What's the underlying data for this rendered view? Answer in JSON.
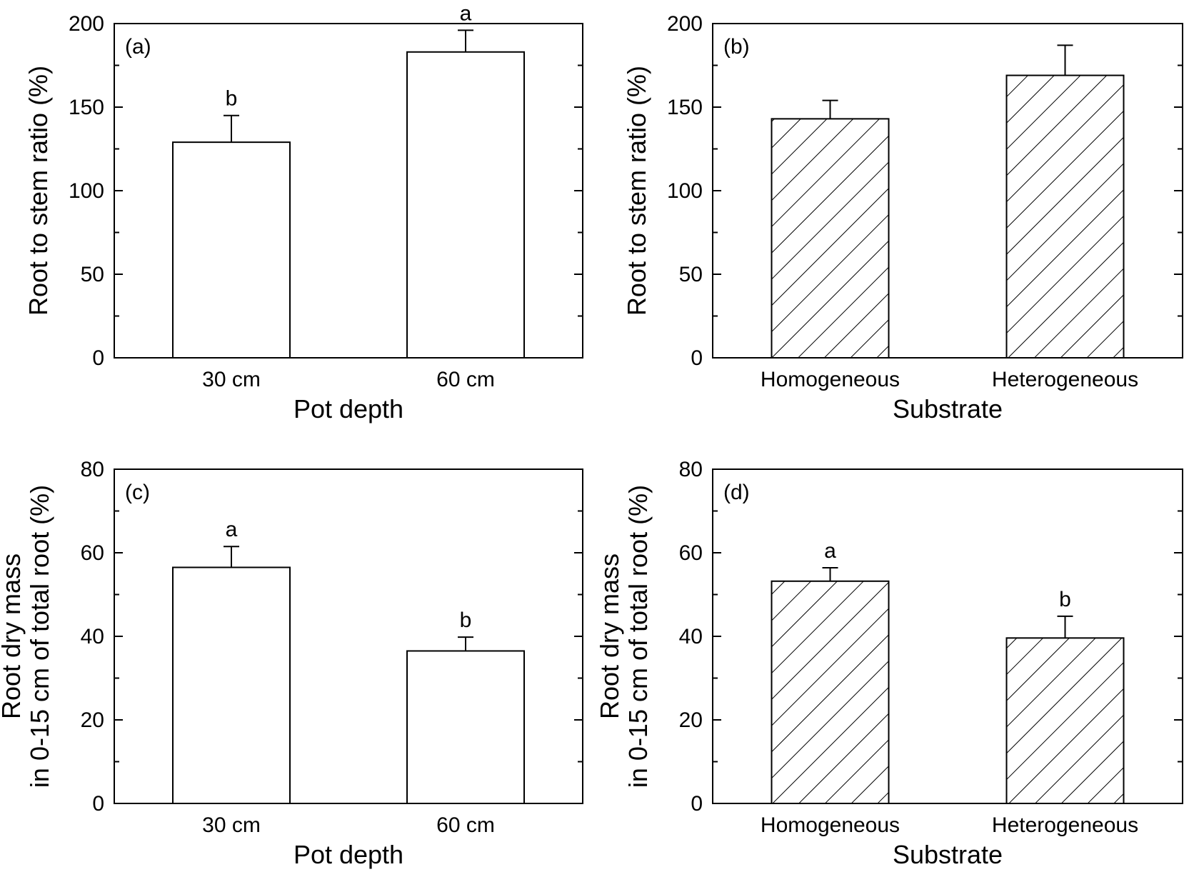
{
  "chart_data": [
    {
      "panel": "(a)",
      "type": "bar",
      "pattern": "open",
      "categories": [
        "30 cm",
        "60 cm"
      ],
      "values": [
        129,
        183
      ],
      "errors": [
        16,
        13
      ],
      "letters": [
        "b",
        "a"
      ],
      "xlabel": "Pot depth",
      "ylabel": [
        "Root to stem ratio (%)"
      ],
      "ylim": [
        0,
        200
      ],
      "major_ticks": [
        0,
        50,
        100,
        150,
        200
      ],
      "minor_step": 25
    },
    {
      "panel": "(b)",
      "type": "bar",
      "pattern": "hatched",
      "categories": [
        "Homogeneous",
        "Heterogeneous"
      ],
      "values": [
        143,
        169
      ],
      "errors": [
        11,
        18
      ],
      "letters": [
        "",
        ""
      ],
      "xlabel": "Substrate",
      "ylabel": [
        "Root to stem ratio (%)"
      ],
      "ylim": [
        0,
        200
      ],
      "major_ticks": [
        0,
        50,
        100,
        150,
        200
      ],
      "minor_step": 25
    },
    {
      "panel": "(c)",
      "type": "bar",
      "pattern": "open",
      "categories": [
        "30 cm",
        "60 cm"
      ],
      "values": [
        56.5,
        36.5
      ],
      "errors": [
        5,
        3.3
      ],
      "letters": [
        "a",
        "b"
      ],
      "xlabel": "Pot depth",
      "ylabel": [
        "Root dry mass",
        "in 0-15 cm of total root (%)"
      ],
      "ylim": [
        0,
        80
      ],
      "major_ticks": [
        0,
        20,
        40,
        60,
        80
      ],
      "minor_step": 10
    },
    {
      "panel": "(d)",
      "type": "bar",
      "pattern": "hatched",
      "categories": [
        "Homogeneous",
        "Heterogeneous"
      ],
      "values": [
        53.2,
        39.6
      ],
      "errors": [
        3.2,
        5.2
      ],
      "letters": [
        "a",
        "b"
      ],
      "xlabel": "Substrate",
      "ylabel": [
        "Root dry mass",
        "in 0-15 cm of total root (%)"
      ],
      "ylim": [
        0,
        80
      ],
      "major_ticks": [
        0,
        20,
        40,
        60,
        80
      ],
      "minor_step": 10
    }
  ]
}
